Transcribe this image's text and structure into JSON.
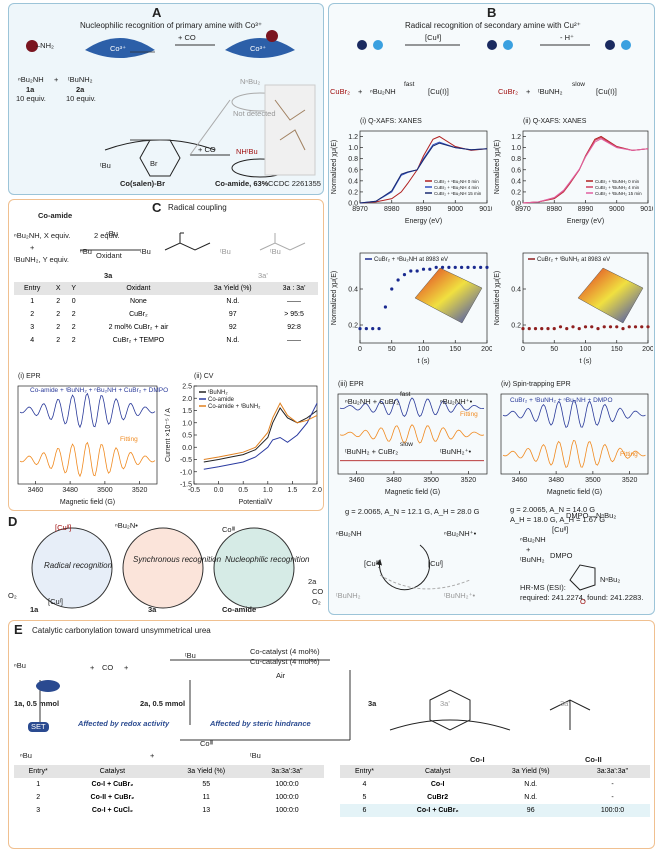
{
  "panel_a": {
    "letter": "A",
    "title": "Nucleophilic recognition of primary amine with Co³⁺",
    "amine": "–NH₂",
    "co_ion": "Co³⁺",
    "plus_co": "+ CO",
    "co_ion2": "Co³⁺",
    "sec_amine": "ⁿBu₂NH",
    "plus": "+",
    "prim_amine": "ᵗBuNH₂",
    "c1": "1a",
    "e1": "10 equiv.",
    "c2": "2a",
    "e2": "10 equiv.",
    "plus_co2": "+ CO",
    "nbu2": "NⁿBu₂",
    "not_detected": "Not detected",
    "catalyst": "Co(salen)-Br",
    "product": "Co-amide, 63%",
    "ccdc": "CCDC 2261355",
    "nhtbu": "NHᵗBu",
    "tbu": "ᵗBu",
    "br": "Br"
  },
  "panel_b": {
    "letter": "B",
    "title": "Radical recognition of secondary amine with Cu²⁺",
    "cu2": "[Cuᴵᴵ]",
    "minus_h": "- H⁺",
    "r1": [
      "CuBr₂",
      "+",
      "ⁿBu₂NH",
      "fast",
      "[Cu(I)]"
    ],
    "r2": [
      "CuBr₂",
      "+",
      "ᵗBuNH₂",
      "slow",
      "[Cu(I)]"
    ],
    "xanes_1": {
      "type": "line",
      "title": "(i) Q-XAFS: XANES",
      "xlabel": "Energy (eV)",
      "ylabel": "Normalized χμ(E)",
      "xlim": [
        8970,
        9010
      ],
      "xticks": [
        8970,
        8980,
        8990,
        9000,
        9010
      ],
      "ylim": [
        0,
        1.3
      ],
      "yticks": [
        {
          "value": 0,
          "label": "0.0"
        },
        {
          "value": 0.2,
          "label": "0.2"
        },
        {
          "value": 0.4,
          "label": "0.4"
        },
        {
          "value": 0.6,
          "label": "0.6"
        },
        {
          "value": 0.8,
          "label": "0.8"
        },
        {
          "value": 1,
          "label": "1.0"
        },
        {
          "value": 1.2,
          "label": "1.2"
        }
      ],
      "legend": "lower right",
      "x": [
        8970,
        8975,
        8980,
        8983,
        8985,
        8988,
        8990,
        8993,
        8995,
        9000,
        9005,
        9010
      ],
      "series": [
        {
          "name": "CuBr₂ + ⁿBu₂NH 0 min",
          "color": "#b02020",
          "values": [
            0,
            0.02,
            0.08,
            0.2,
            0.35,
            0.6,
            0.85,
            1.15,
            1.2,
            1.02,
            0.95,
            0.98
          ]
        },
        {
          "name": "CuBr₂ + ⁿBu₂NH 4 min",
          "color": "#3050c0",
          "values": [
            0,
            0.03,
            0.2,
            0.5,
            0.55,
            0.6,
            0.8,
            1.05,
            1.1,
            1,
            0.96,
            0.98
          ]
        },
        {
          "name": "CuBr₂ + ⁿBu₂NH 15 min",
          "color": "#1a2a70",
          "values": [
            0,
            0.03,
            0.22,
            0.52,
            0.56,
            0.6,
            0.78,
            1.03,
            1.08,
            1,
            0.96,
            0.98
          ]
        }
      ]
    },
    "xanes_2": {
      "type": "line",
      "title": "(ii) Q-XAFS: XANES",
      "xlabel": "Energy (eV)",
      "ylabel": "Normalized χμ(E)",
      "xlim": [
        8970,
        9010
      ],
      "xticks": [
        8970,
        8980,
        8990,
        9000,
        9010
      ],
      "ylim": [
        0,
        1.3
      ],
      "yticks": [
        {
          "value": 0,
          "label": "0.0"
        },
        {
          "value": 0.2,
          "label": "0.2"
        },
        {
          "value": 0.4,
          "label": "0.4"
        },
        {
          "value": 0.6,
          "label": "0.6"
        },
        {
          "value": 0.8,
          "label": "0.8"
        },
        {
          "value": 1,
          "label": "1.0"
        },
        {
          "value": 1.2,
          "label": "1.2"
        }
      ],
      "legend": "lower right",
      "x": [
        8970,
        8975,
        8980,
        8983,
        8985,
        8988,
        8990,
        8993,
        8995,
        9000,
        9005,
        9010
      ],
      "series": [
        {
          "name": "CuBr₂ + ᵗBuNH₂ 0 min",
          "color": "#b02020",
          "values": [
            0,
            0.02,
            0.08,
            0.2,
            0.35,
            0.6,
            0.85,
            1.15,
            1.2,
            1.02,
            0.95,
            0.98
          ]
        },
        {
          "name": "CuBr₂ + ᵗBuNH₂ 4 min",
          "color": "#d04060",
          "values": [
            0,
            0.02,
            0.09,
            0.21,
            0.36,
            0.6,
            0.84,
            1.13,
            1.18,
            1.01,
            0.95,
            0.98
          ]
        },
        {
          "name": "CuBr₂ + ᵗBuNH₂ 15 min",
          "color": "#e060a0",
          "values": [
            0,
            0.02,
            0.1,
            0.23,
            0.38,
            0.61,
            0.83,
            1.1,
            1.16,
            1,
            0.95,
            0.98
          ]
        }
      ]
    },
    "kin_1": {
      "type": "scatter",
      "xlabel": "t (s)",
      "ylabel": "Normalized χμ(E)",
      "xlim": [
        0,
        200
      ],
      "xticks": [
        0,
        50,
        100,
        150,
        200
      ],
      "ylim": [
        0.1,
        0.6
      ],
      "yticks": [
        0.2,
        0.4
      ],
      "legend": "upper left",
      "x": [
        0,
        10,
        20,
        30,
        40,
        50,
        60,
        70,
        80,
        90,
        100,
        110,
        120,
        130,
        140,
        150,
        160,
        170,
        180,
        190,
        200
      ],
      "series": [
        {
          "name": "CuBr₂ + ⁿBu₂NH at 8983 eV",
          "color": "#1a2a90",
          "values": [
            0.18,
            0.18,
            0.18,
            0.18,
            0.3,
            0.4,
            0.45,
            0.48,
            0.5,
            0.5,
            0.51,
            0.51,
            0.52,
            0.52,
            0.52,
            0.52,
            0.52,
            0.52,
            0.52,
            0.52,
            0.52
          ]
        }
      ]
    },
    "kin_2": {
      "type": "scatter",
      "xlabel": "t (s)",
      "ylabel": "Normalized χμ(E)",
      "xlim": [
        0,
        200
      ],
      "xticks": [
        0,
        50,
        100,
        150,
        200
      ],
      "ylim": [
        0.1,
        0.6
      ],
      "yticks": [
        0.2,
        0.4
      ],
      "legend": "upper left",
      "x": [
        0,
        10,
        20,
        30,
        40,
        50,
        60,
        70,
        80,
        90,
        100,
        110,
        120,
        130,
        140,
        150,
        160,
        170,
        180,
        190,
        200
      ],
      "series": [
        {
          "name": "CuBr₂ + ᵗBuNH₂ at 8983 eV",
          "color": "#902020",
          "values": [
            0.18,
            0.18,
            0.18,
            0.18,
            0.18,
            0.18,
            0.19,
            0.18,
            0.19,
            0.18,
            0.19,
            0.19,
            0.18,
            0.19,
            0.19,
            0.19,
            0.18,
            0.19,
            0.19,
            0.19,
            0.19
          ]
        }
      ]
    },
    "epr_3": {
      "type": "epr",
      "title": "(iii) EPR",
      "xlabel": "Magnetic field (G)",
      "xlim": [
        3450,
        3530
      ],
      "xticks": [
        3460,
        3480,
        3500,
        3520
      ],
      "series": [
        {
          "color": "#2a3a9a"
        },
        {
          "color": "#f08a20"
        },
        {
          "color": "#b02020"
        }
      ]
    },
    "epr_4": {
      "type": "epr",
      "title": "(iv) Spin-trapping EPR",
      "xlabel": "Magnetic field (G)",
      "xlim": [
        3450,
        3530
      ],
      "xticks": [
        3460,
        3480,
        3500,
        3520
      ],
      "series": [
        {
          "color": "#2a3a9a"
        },
        {
          "color": "#f08a20"
        }
      ]
    },
    "epr3_text": [
      "ⁿBu₂NH + CuBr₂",
      "fast",
      "ⁿBu₂NH⁺•",
      "Fitting",
      "ᵗBuNH₂ + CuBr₂",
      "slow",
      "ᵗBuNH₂⁺•",
      "g = 2.0065, A_N = 12.1 G, A_H = 28.0 G"
    ],
    "epr4_text": [
      "CuBr₂ + ᵗBuNH₂ + ⁿBu₂NH + DMPO",
      "Fitting",
      "g = 2.0065, A_N = 14.0 G",
      "A_H = 18.0 G, A_H = 1.67 G"
    ],
    "cycle": [
      "ⁿBu₂NH",
      "ⁿBu₂NH⁺•",
      "[Cuᴵᴵ]",
      "[Cuᴵ]",
      "ᵗBuNH₂",
      "ᵗBuNH₂⁺•"
    ],
    "trap": [
      "ⁿBu₂NH",
      "+",
      "ᵗBuNH₂",
      "[Cuᴵᴵ]",
      "DMPO",
      "DMPO—NⁿBu₂",
      "NⁿBu₂",
      "O",
      "HR-MS (ESI):",
      "required: 241.2274, found: 241.2283."
    ]
  },
  "panel_c": {
    "letter": "C",
    "title": "Radical coupling",
    "scheme": [
      "Co-amide",
      "ⁿBu₂NH, X equiv.",
      "+",
      "ᵗBuNH₂, Y equiv.",
      "2 equiv.",
      "Oxidant",
      "3a",
      "3a'",
      "ⁿBu",
      "ⁿBu",
      "ᵗBu",
      "ᵗBu",
      "ᵗBu"
    ],
    "table": {
      "header": [
        "Entry",
        "X",
        "Y",
        "Oxidant",
        "3a Yield (%)",
        "3a : 3a'"
      ],
      "rows": [
        [
          "1",
          "2",
          "0",
          "None",
          "N.d.",
          "——"
        ],
        [
          "2",
          "2",
          "2",
          "CuBr₂",
          "97",
          "> 95:5"
        ],
        [
          "3",
          "2",
          "2",
          "2 mol% CuBr₂ + air",
          "92",
          "92:8"
        ],
        [
          "4",
          "2",
          "2",
          "CuBr₂ + TEMPO",
          "N.d.",
          "——"
        ]
      ]
    },
    "epr_1": {
      "type": "epr",
      "title": "(i) EPR",
      "xlabel": "Magnetic field (G)",
      "xlim": [
        3450,
        3530
      ],
      "xticks": [
        3460,
        3480,
        3500,
        3520
      ],
      "series": [
        {
          "color": "#2a3a9a"
        },
        {
          "color": "#f08a20"
        }
      ]
    },
    "epr1_text": [
      "Co-amide + ᵗBuNH₂ + ⁿBu₂NH + CuBr₂ + DMPO",
      "Fitting"
    ],
    "cv": {
      "type": "line",
      "title": "(ii) CV",
      "xlabel": "Potential/V",
      "ylabel": "Current ×10⁻⁵ / A",
      "xlim": [
        -0.5,
        2.0
      ],
      "xticks": [
        -0.5,
        {
          "value": 0,
          "label": "0.0"
        },
        0.5,
        {
          "value": 1,
          "label": "1.0"
        },
        1.5,
        {
          "value": 2,
          "label": "2.0"
        }
      ],
      "ylim": [
        -1.5,
        2.5
      ],
      "yticks": [
        -1.5,
        {
          "value": -1,
          "label": "-1.0"
        },
        -0.5,
        {
          "value": 0,
          "label": "0.0"
        },
        0.5,
        {
          "value": 1,
          "label": "1.0"
        },
        1.5,
        {
          "value": 2,
          "label": "2.0"
        },
        2.5
      ],
      "legend": "upper left",
      "x": [
        -0.3,
        0,
        0.25,
        0.5,
        0.75,
        1,
        1.1,
        1.25,
        1.4,
        1.6,
        1.8,
        2.0
      ],
      "series": [
        {
          "name": "ᵗBuNH₂",
          "color": "#222222",
          "values": [
            -0.6,
            -0.5,
            -0.4,
            -0.3,
            -0.1,
            0.4,
            1,
            1.6,
            1.2,
            1,
            1.2,
            1.5
          ]
        },
        {
          "name": "Co-amide",
          "color": "#2a3aa0",
          "values": [
            -0.9,
            -0.8,
            -0.7,
            -0.6,
            -0.4,
            0,
            0.3,
            0.4,
            0.2,
            0.5,
            1,
            1.8
          ]
        },
        {
          "name": "Co-amide + ᵗBuNH₂",
          "color": "#e08020",
          "values": [
            -0.5,
            -0.4,
            -0.3,
            -0.2,
            0,
            0.6,
            1.2,
            1.8,
            1.3,
            1,
            1.1,
            1.3
          ]
        }
      ]
    }
  },
  "panel_d": {
    "letter": "D",
    "labels": [
      "[Cuᴵᴵ]",
      "ⁿBu₂N•",
      "Radical recognition",
      "Synchronous recognition",
      "Nucleophilic recognition",
      "[Cuᴵ]",
      "O₂",
      "1a",
      "3a",
      "Co-amide",
      "2a",
      "CO",
      "O₂",
      "Coᴵᴵᴵ"
    ]
  },
  "panel_e": {
    "letter": "E",
    "title": "Catalytic carbonylation toward unsymmetrical urea",
    "scheme": [
      "1a, 0.5 mmol",
      "+",
      "CO",
      "+",
      "2a, 0.5 mmol",
      "Co-catalyst (4 mol%)",
      "Cu-catalyst (4 mol%)",
      "Air",
      "3a",
      "3a'",
      "3a''",
      "SET",
      "Affected by redox activity",
      "Affected by steric hindrance",
      "+",
      "Co-I",
      "Co-II",
      "ⁿBu",
      "ⁿBu",
      "ᵗBu",
      "ᵗBu",
      "Coᴵᴵᴵ"
    ],
    "table_left": {
      "header": [
        "Entry*",
        "Catalyst",
        "3a Yield (%)",
        "3a:3a':3a''"
      ],
      "rows": [
        [
          "1",
          "Co-I + CuBr₂",
          "55",
          "100:0:0"
        ],
        [
          "2",
          "Co-II + CuBr₂",
          "11",
          "100:0:0"
        ],
        [
          "3",
          "Co-I + CuCl₂",
          "13",
          "100:0:0"
        ]
      ]
    },
    "table_right": {
      "header": [
        "Entry*",
        "Catalyst",
        "3a Yield (%)",
        "3a:3a':3a''"
      ],
      "rows": [
        [
          "4",
          "Co-I",
          "N.d.",
          "-"
        ],
        [
          "5",
          "CuBr2",
          "N.d.",
          "-"
        ],
        [
          "6",
          "Co-I + CuBr₂",
          "96",
          "100:0:0"
        ]
      ]
    }
  }
}
